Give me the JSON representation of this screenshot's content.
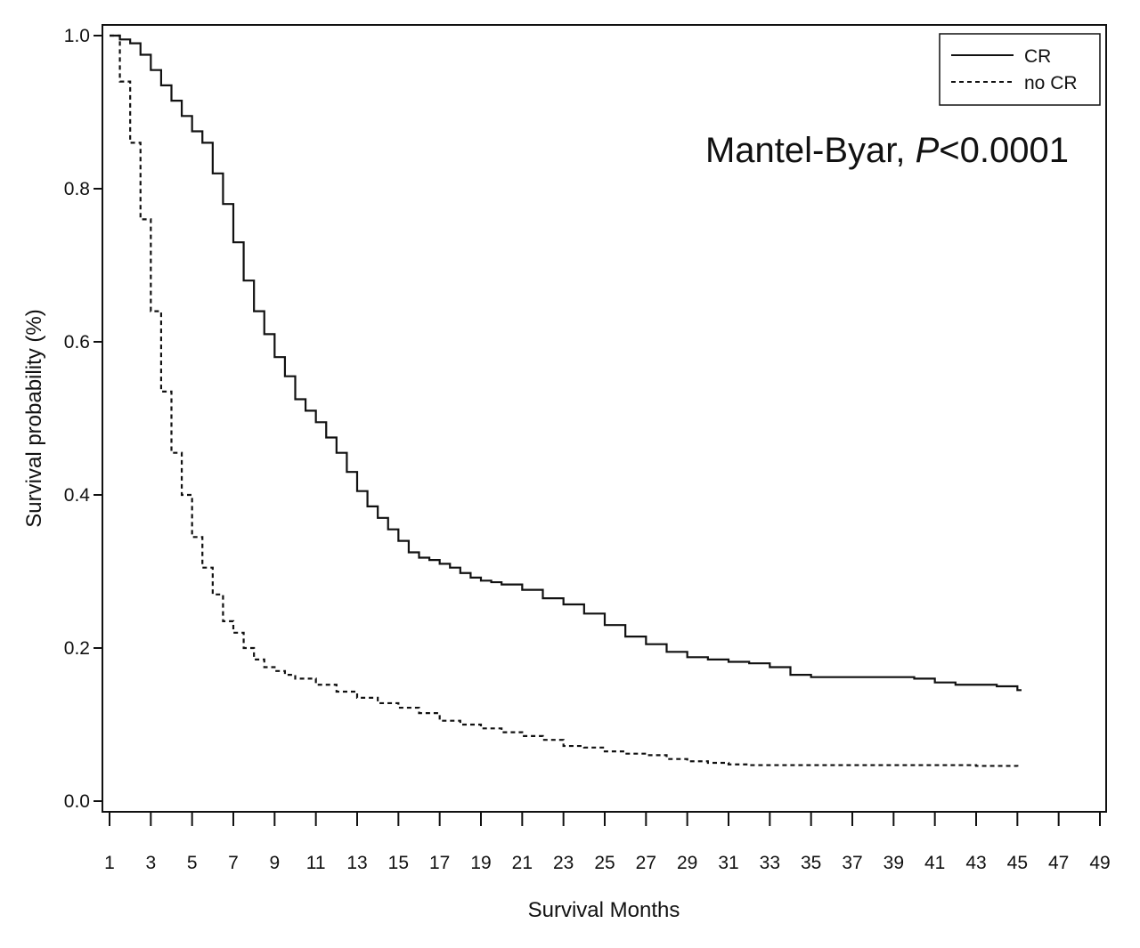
{
  "chart_data": {
    "type": "line",
    "title": "",
    "xlabel": "Survival Months",
    "ylabel": "Survival probability (%)",
    "xlim": [
      1,
      49
    ],
    "ylim": [
      0.0,
      1.0
    ],
    "x_ticks": [
      1,
      3,
      5,
      7,
      9,
      11,
      13,
      15,
      17,
      19,
      21,
      23,
      25,
      27,
      29,
      31,
      33,
      35,
      37,
      39,
      41,
      43,
      45,
      47,
      49
    ],
    "y_ticks": [
      "0.0",
      "0.2",
      "0.4",
      "0.6",
      "0.8",
      "1.0"
    ],
    "annotation": {
      "text": "Mantel-Byar, ",
      "p_symbol": "P",
      "p_value": "<0.0001"
    },
    "legend_position": "top-right",
    "series": [
      {
        "name": "CR",
        "style": "solid",
        "x": [
          1,
          1.5,
          2,
          2.5,
          3,
          3.5,
          4,
          4.5,
          5,
          5.5,
          6,
          6.5,
          7,
          7.5,
          8,
          8.5,
          9,
          9.5,
          10,
          10.5,
          11,
          11.5,
          12,
          12.5,
          13,
          13.5,
          14,
          14.5,
          15,
          15.5,
          16,
          16.5,
          17,
          17.5,
          18,
          18.5,
          19,
          19.5,
          20,
          21,
          22,
          23,
          24,
          25,
          26,
          27,
          28,
          29,
          30,
          31,
          32,
          33,
          34,
          35,
          36,
          37,
          38,
          39,
          40,
          41,
          42,
          43,
          44,
          45,
          45.2
        ],
        "y": [
          1.0,
          0.995,
          0.99,
          0.975,
          0.955,
          0.935,
          0.915,
          0.895,
          0.875,
          0.86,
          0.82,
          0.78,
          0.73,
          0.68,
          0.64,
          0.61,
          0.58,
          0.555,
          0.525,
          0.51,
          0.495,
          0.475,
          0.455,
          0.43,
          0.405,
          0.385,
          0.37,
          0.355,
          0.34,
          0.325,
          0.318,
          0.315,
          0.31,
          0.305,
          0.298,
          0.292,
          0.288,
          0.286,
          0.283,
          0.276,
          0.265,
          0.257,
          0.245,
          0.23,
          0.215,
          0.205,
          0.195,
          0.188,
          0.185,
          0.182,
          0.18,
          0.175,
          0.165,
          0.162,
          0.162,
          0.162,
          0.162,
          0.162,
          0.16,
          0.155,
          0.152,
          0.152,
          0.15,
          0.145,
          0.145
        ]
      },
      {
        "name": "no CR",
        "style": "dashed",
        "x": [
          1,
          1.5,
          2,
          2.5,
          3,
          3.5,
          4,
          4.5,
          5,
          5.5,
          6,
          6.5,
          7,
          7.5,
          8,
          8.5,
          9,
          9.5,
          10,
          11,
          12,
          13,
          14,
          15,
          16,
          17,
          18,
          19,
          20,
          21,
          22,
          23,
          24,
          25,
          26,
          27,
          28,
          29,
          30,
          31,
          32,
          33,
          35,
          37,
          39,
          41,
          43,
          45
        ],
        "y": [
          1.0,
          0.94,
          0.86,
          0.76,
          0.64,
          0.535,
          0.455,
          0.4,
          0.345,
          0.305,
          0.27,
          0.235,
          0.22,
          0.2,
          0.185,
          0.175,
          0.17,
          0.165,
          0.16,
          0.152,
          0.143,
          0.135,
          0.128,
          0.122,
          0.115,
          0.105,
          0.1,
          0.095,
          0.09,
          0.085,
          0.08,
          0.072,
          0.07,
          0.065,
          0.062,
          0.06,
          0.055,
          0.052,
          0.05,
          0.048,
          0.047,
          0.047,
          0.047,
          0.047,
          0.047,
          0.047,
          0.046,
          0.045
        ]
      }
    ]
  }
}
